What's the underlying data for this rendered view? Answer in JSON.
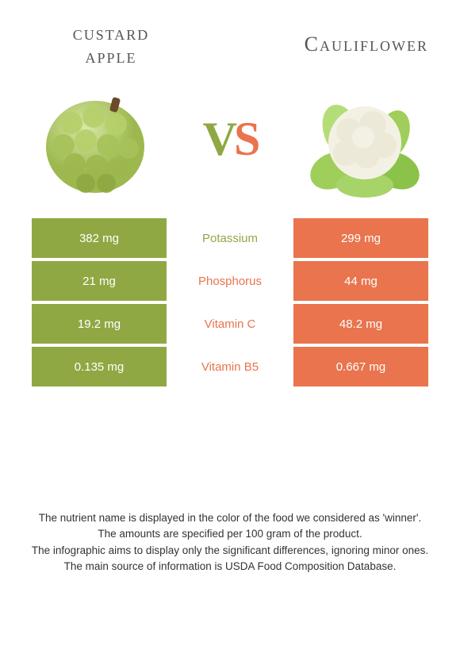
{
  "header": {
    "left_title_line1": "custard",
    "left_title_line2": "apple",
    "right_title": "Cauliflower",
    "vs_v": "V",
    "vs_s": "S"
  },
  "colors": {
    "left": "#8fa843",
    "right": "#e9744d",
    "row_bg": "#ffffff"
  },
  "rows": [
    {
      "left": "382 mg",
      "label": "Potassium",
      "right": "299 mg",
      "winner": "left"
    },
    {
      "left": "21 mg",
      "label": "Phosphorus",
      "right": "44 mg",
      "winner": "right"
    },
    {
      "left": "19.2 mg",
      "label": "Vitamin C",
      "right": "48.2 mg",
      "winner": "right"
    },
    {
      "left": "0.135 mg",
      "label": "Vitamin B5",
      "right": "0.667 mg",
      "winner": "right"
    }
  ],
  "footer": {
    "line1": "The nutrient name is displayed in the color of the food we considered as 'winner'.",
    "line2": "The amounts are specified per 100 gram of the product.",
    "line3": "The infographic aims to display only the significant differences, ignoring minor ones.",
    "line4": "The main source of information is USDA Food Composition Database."
  }
}
